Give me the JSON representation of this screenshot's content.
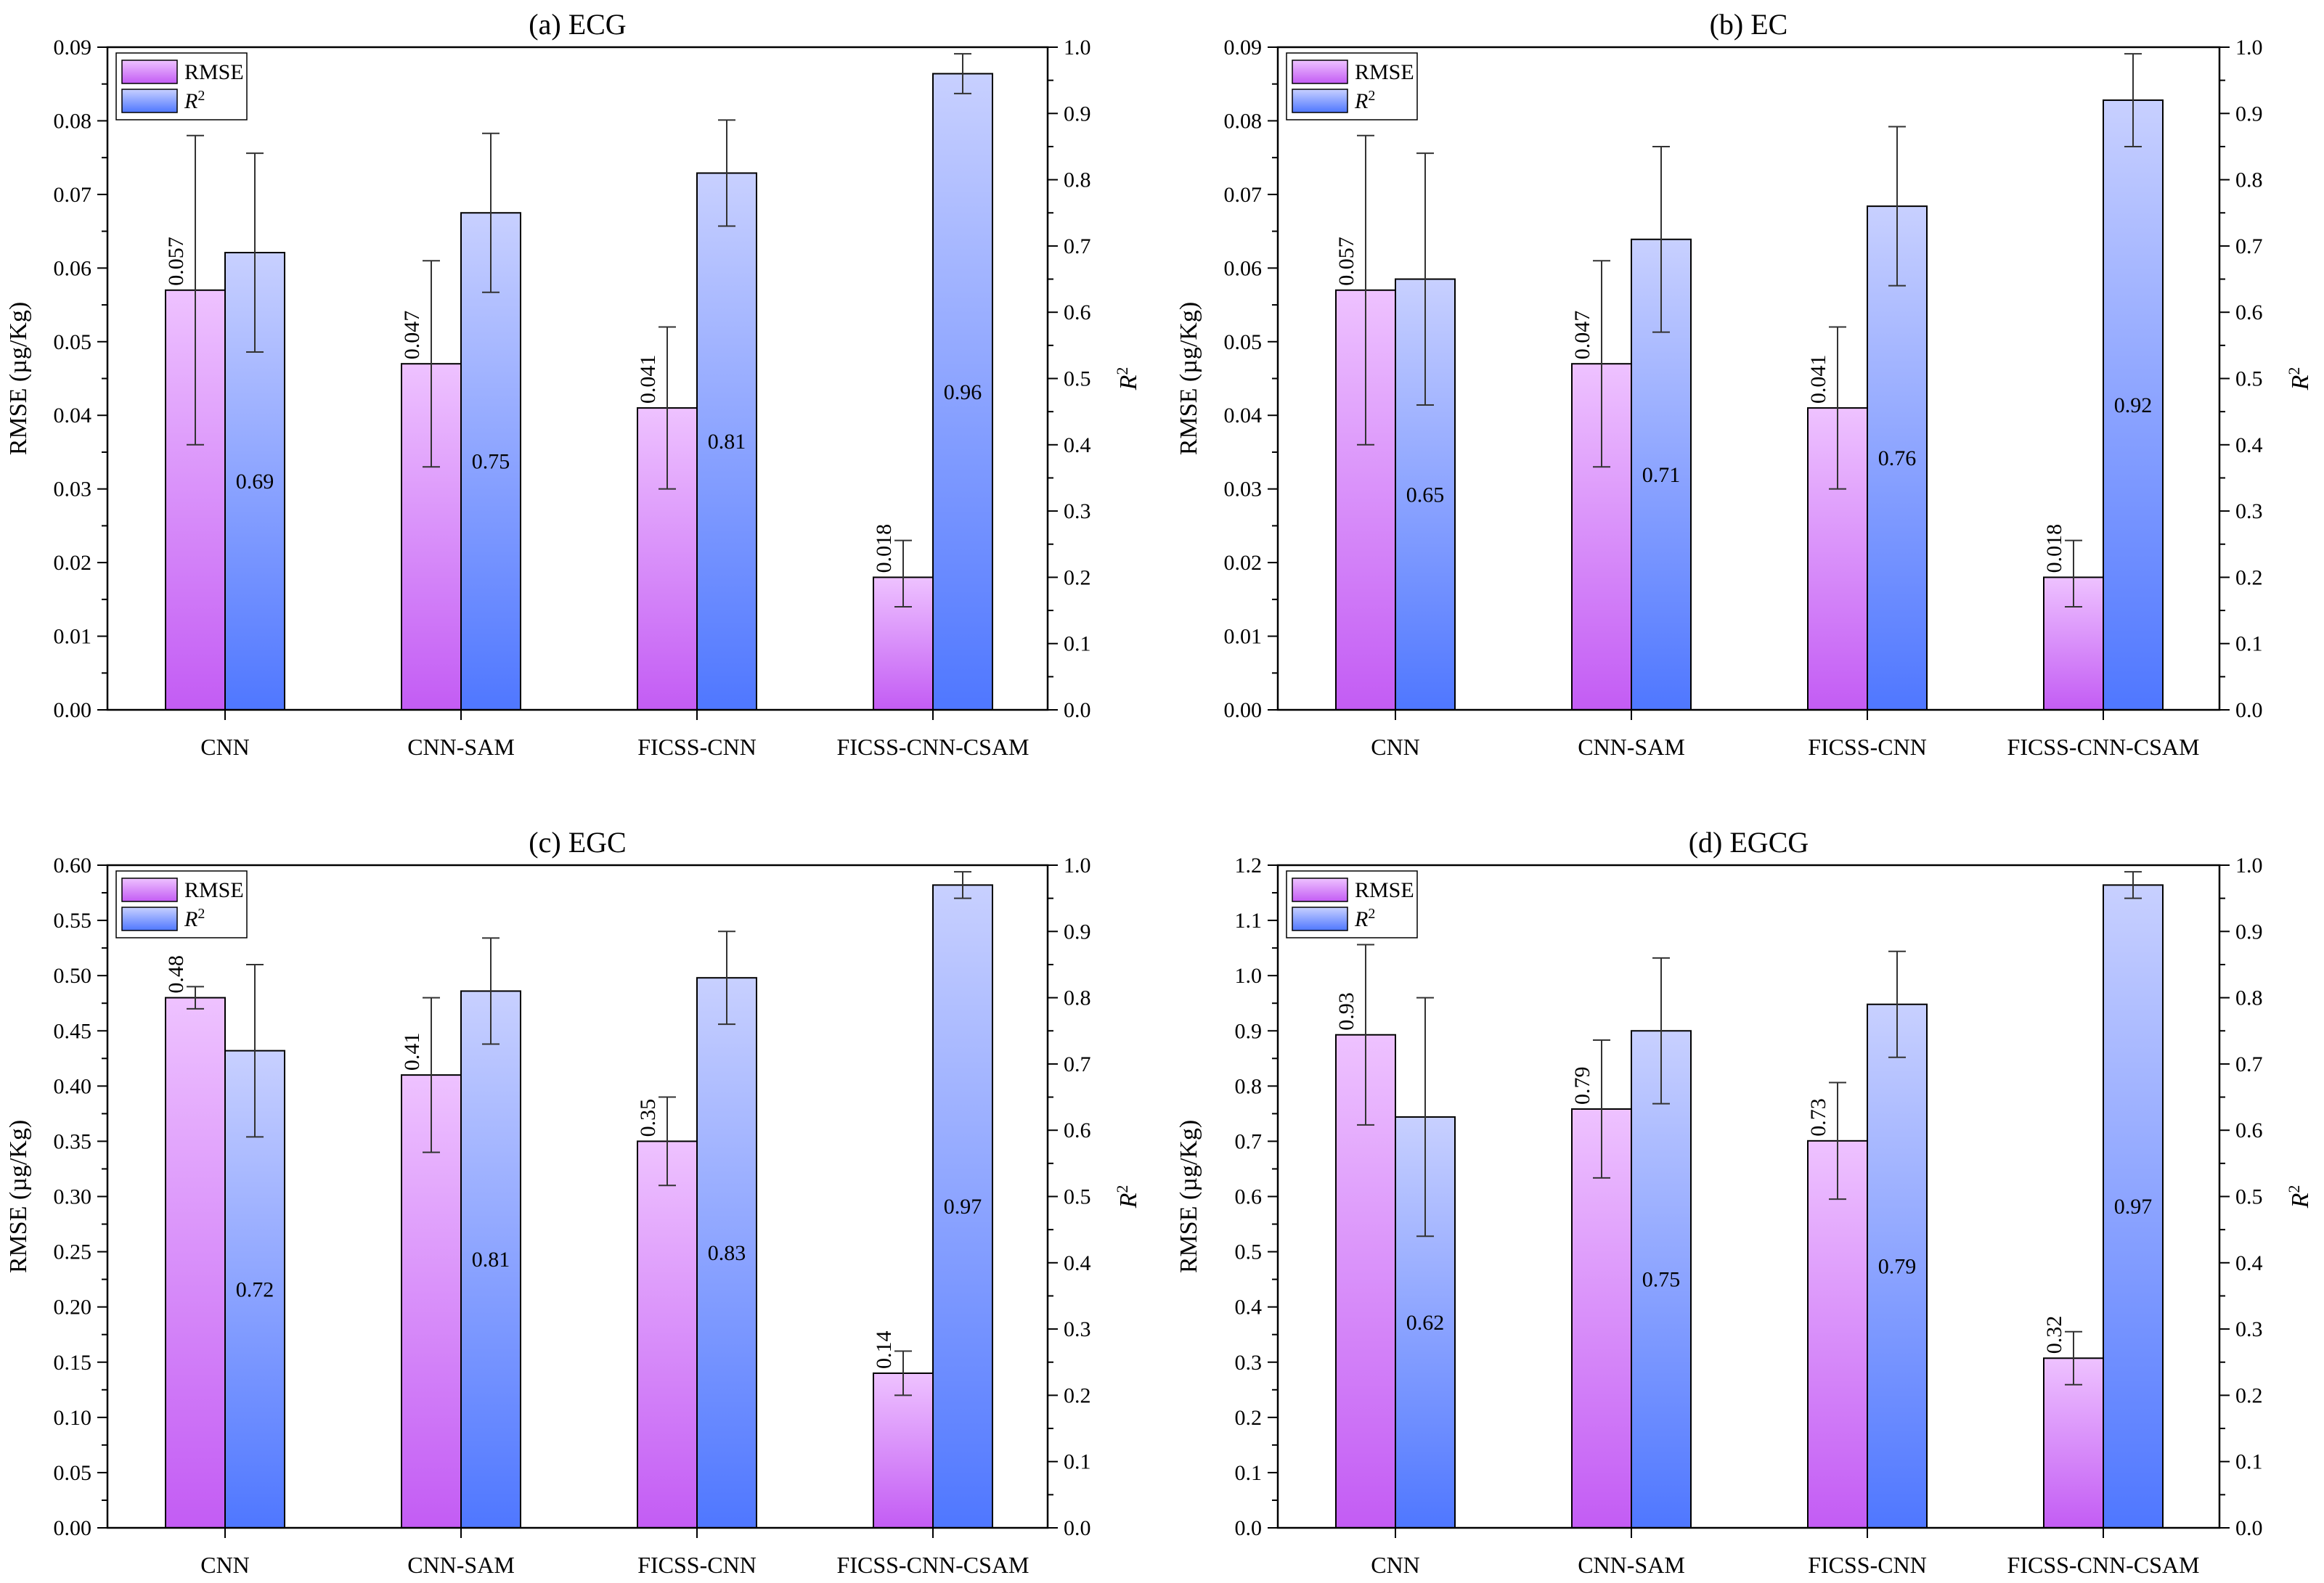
{
  "colors": {
    "rmse_top": "#eec2ff",
    "rmse_bottom": "#c35cf4",
    "r2_top": "#c8d0ff",
    "r2_bottom": "#4f77ff",
    "axis": "#000000",
    "errorbar": "#333333"
  },
  "chart_data": [
    {
      "type": "bar",
      "title": "(a) ECG",
      "categories": [
        "CNN",
        "CNN-SAM",
        "FICSS-CNN",
        "FICSS-CNN-CSAM"
      ],
      "ylabel": "RMSE (µg/Kg)",
      "y2label": "R",
      "y2label_sup": "2",
      "ylim": [
        0,
        0.09
      ],
      "yticks": [
        "0.00",
        "0.01",
        "0.02",
        "0.03",
        "0.04",
        "0.05",
        "0.06",
        "0.07",
        "0.08",
        "0.09"
      ],
      "y2lim": [
        0,
        1.0
      ],
      "y2ticks": [
        "0.0",
        "0.1",
        "0.2",
        "0.3",
        "0.4",
        "0.5",
        "0.6",
        "0.7",
        "0.8",
        "0.9",
        "1.0"
      ],
      "legend": {
        "placement": "top-left",
        "rmse": "RMSE",
        "r2": "R",
        "r2_sup": "2"
      },
      "series": [
        {
          "name": "RMSE",
          "axis": "left",
          "values": [
            0.057,
            0.047,
            0.041,
            0.018
          ],
          "labels": [
            "0.057",
            "0.047",
            "0.041",
            "0.018"
          ],
          "err_low": [
            0.036,
            0.033,
            0.03,
            0.014
          ],
          "err_high": [
            0.078,
            0.061,
            0.052,
            0.023
          ]
        },
        {
          "name": "R2",
          "axis": "right",
          "values": [
            0.69,
            0.75,
            0.81,
            0.96
          ],
          "labels": [
            "0.69",
            "0.75",
            "0.81",
            "0.96"
          ],
          "err_low": [
            0.54,
            0.63,
            0.73,
            0.93
          ],
          "err_high": [
            0.84,
            0.87,
            0.89,
            0.99
          ]
        }
      ]
    },
    {
      "type": "bar",
      "title": "(b) EC",
      "categories": [
        "CNN",
        "CNN-SAM",
        "FICSS-CNN",
        "FICSS-CNN-CSAM"
      ],
      "ylabel": "RMSE (µg/Kg)",
      "y2label": "R",
      "y2label_sup": "2",
      "ylim": [
        0,
        0.09
      ],
      "yticks": [
        "0.00",
        "0.01",
        "0.02",
        "0.03",
        "0.04",
        "0.05",
        "0.06",
        "0.07",
        "0.08",
        "0.09"
      ],
      "y2lim": [
        0,
        1.0
      ],
      "y2ticks": [
        "0.0",
        "0.1",
        "0.2",
        "0.3",
        "0.4",
        "0.5",
        "0.6",
        "0.7",
        "0.8",
        "0.9",
        "1.0"
      ],
      "legend": {
        "placement": "top-left",
        "rmse": "RMSE",
        "r2": "R",
        "r2_sup": "2"
      },
      "series": [
        {
          "name": "RMSE",
          "axis": "left",
          "values": [
            0.057,
            0.047,
            0.041,
            0.018
          ],
          "labels": [
            "0.057",
            "0.047",
            "0.041",
            "0.018"
          ],
          "err_low": [
            0.036,
            0.033,
            0.03,
            0.014
          ],
          "err_high": [
            0.078,
            0.061,
            0.052,
            0.023
          ]
        },
        {
          "name": "R2",
          "axis": "right",
          "values": [
            0.65,
            0.71,
            0.76,
            0.92
          ],
          "labels": [
            "0.65",
            "0.71",
            "0.76",
            "0.92"
          ],
          "err_low": [
            0.46,
            0.57,
            0.64,
            0.85
          ],
          "err_high": [
            0.84,
            0.85,
            0.88,
            0.99
          ]
        }
      ]
    },
    {
      "type": "bar",
      "title": "(c) EGC",
      "categories": [
        "CNN",
        "CNN-SAM",
        "FICSS-CNN",
        "FICSS-CNN-CSAM"
      ],
      "ylabel": "RMSE (µg/Kg)",
      "y2label": "R",
      "y2label_sup": "2",
      "ylim": [
        0,
        0.6
      ],
      "yticks": [
        "0.00",
        "0.05",
        "0.10",
        "0.15",
        "0.20",
        "0.25",
        "0.30",
        "0.35",
        "0.40",
        "0.45",
        "0.50",
        "0.55",
        "0.60"
      ],
      "y2lim": [
        0,
        1.0
      ],
      "y2ticks": [
        "0.0",
        "0.1",
        "0.2",
        "0.3",
        "0.4",
        "0.5",
        "0.6",
        "0.7",
        "0.8",
        "0.9",
        "1.0"
      ],
      "legend": {
        "placement": "top-left",
        "rmse": "RMSE",
        "r2": "R",
        "r2_sup": "2"
      },
      "series": [
        {
          "name": "RMSE",
          "axis": "left",
          "values": [
            0.48,
            0.41,
            0.35,
            0.14
          ],
          "labels": [
            "0.48",
            "0.41",
            "0.35",
            "0.14"
          ],
          "err_low": [
            0.47,
            0.34,
            0.31,
            0.12
          ],
          "err_high": [
            0.49,
            0.48,
            0.39,
            0.16
          ]
        },
        {
          "name": "R2",
          "axis": "right",
          "values": [
            0.72,
            0.81,
            0.83,
            0.97
          ],
          "labels": [
            "0.72",
            "0.81",
            "0.83",
            "0.97"
          ],
          "err_low": [
            0.59,
            0.73,
            0.76,
            0.95
          ],
          "err_high": [
            0.85,
            0.89,
            0.9,
            0.99
          ]
        }
      ]
    },
    {
      "type": "bar",
      "title": "(d) EGCG",
      "categories": [
        "CNN",
        "CNN-SAM",
        "FICSS-CNN",
        "FICSS-CNN-CSAM"
      ],
      "ylabel": "RMSE (µg/Kg)",
      "y2label": "R",
      "y2label_sup": "2",
      "ylim": [
        0,
        1.25
      ],
      "yticks": [
        "0.0",
        "0.1",
        "0.2",
        "0.3",
        "0.4",
        "0.5",
        "0.6",
        "0.7",
        "0.8",
        "0.9",
        "1.0",
        "1.1",
        "1.2"
      ],
      "y2lim": [
        0,
        1.0
      ],
      "y2ticks": [
        "0.0",
        "0.1",
        "0.2",
        "0.3",
        "0.4",
        "0.5",
        "0.6",
        "0.7",
        "0.8",
        "0.9",
        "1.0"
      ],
      "legend": {
        "placement": "top-left",
        "rmse": "RMSE",
        "r2": "R",
        "r2_sup": "2"
      },
      "series": [
        {
          "name": "RMSE",
          "axis": "left",
          "values": [
            0.93,
            0.79,
            0.73,
            0.32
          ],
          "labels": [
            "0.93",
            "0.79",
            "0.73",
            "0.32"
          ],
          "err_low": [
            0.76,
            0.66,
            0.62,
            0.27
          ],
          "err_high": [
            1.1,
            0.92,
            0.84,
            0.37
          ]
        },
        {
          "name": "R2",
          "axis": "right",
          "values": [
            0.62,
            0.75,
            0.79,
            0.97
          ],
          "labels": [
            "0.62",
            "0.75",
            "0.79",
            "0.97"
          ],
          "err_low": [
            0.44,
            0.64,
            0.71,
            0.95
          ],
          "err_high": [
            0.8,
            0.86,
            0.87,
            0.99
          ]
        }
      ]
    }
  ]
}
